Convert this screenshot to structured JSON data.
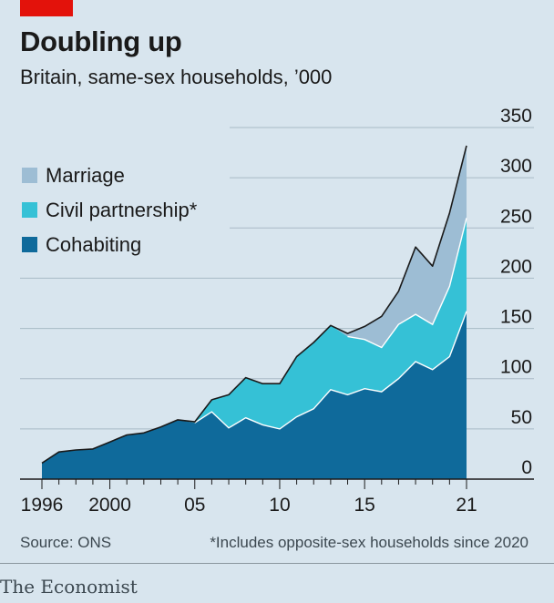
{
  "header": {
    "title": "Doubling up",
    "subtitle": "Britain, same-sex households, ’000"
  },
  "footer": {
    "source": "Source: ONS",
    "note": "*Includes opposite-sex households since 2020",
    "brand": "The Economist"
  },
  "colors": {
    "background": "#d8e5ee",
    "brand_red": "#e3120b",
    "cohabiting": "#0f6a9b",
    "civil_partnership": "#35c1d6",
    "marriage": "#9dbdd4",
    "outline": "#1a1a1a",
    "gridline": "#a9bac6"
  },
  "chart_data": {
    "type": "area",
    "stacked": true,
    "title": "Doubling up",
    "subtitle": "Britain, same-sex households, ’000",
    "x": [
      1996,
      1997,
      1998,
      1999,
      2000,
      2001,
      2002,
      2003,
      2004,
      2005,
      2006,
      2007,
      2008,
      2009,
      2010,
      2011,
      2012,
      2013,
      2014,
      2015,
      2016,
      2017,
      2018,
      2019,
      2020,
      2021
    ],
    "x_tick_values": [
      1996,
      2000,
      2005,
      2010,
      2015,
      2021
    ],
    "x_tick_labels": [
      "1996",
      "2000",
      "05",
      "10",
      "15",
      "21"
    ],
    "y_ticks": [
      0,
      50,
      100,
      150,
      200,
      250,
      300,
      350
    ],
    "ylim": [
      0,
      350
    ],
    "xlabel": "",
    "ylabel": "",
    "grid": true,
    "legend_position": "top-left",
    "series": [
      {
        "name": "Cohabiting",
        "color": "#0f6a9b",
        "values": [
          16,
          27,
          29,
          30,
          37,
          44,
          46,
          52,
          59,
          56,
          67,
          51,
          61,
          54,
          50,
          62,
          70,
          89,
          84,
          90,
          87,
          100,
          117,
          109,
          122,
          167
        ]
      },
      {
        "name": "Civil partnership*",
        "color": "#35c1d6",
        "values": [
          0,
          0,
          0,
          0,
          0,
          0,
          0,
          0,
          0,
          1,
          12,
          33,
          40,
          41,
          45,
          60,
          66,
          64,
          58,
          49,
          44,
          54,
          47,
          45,
          70,
          93
        ]
      },
      {
        "name": "Marriage",
        "color": "#9dbdd4",
        "values": [
          0,
          0,
          0,
          0,
          0,
          0,
          0,
          0,
          0,
          0,
          0,
          0,
          0,
          0,
          0,
          0,
          0,
          0,
          3,
          13,
          31,
          33,
          67,
          58,
          73,
          72
        ]
      }
    ]
  }
}
